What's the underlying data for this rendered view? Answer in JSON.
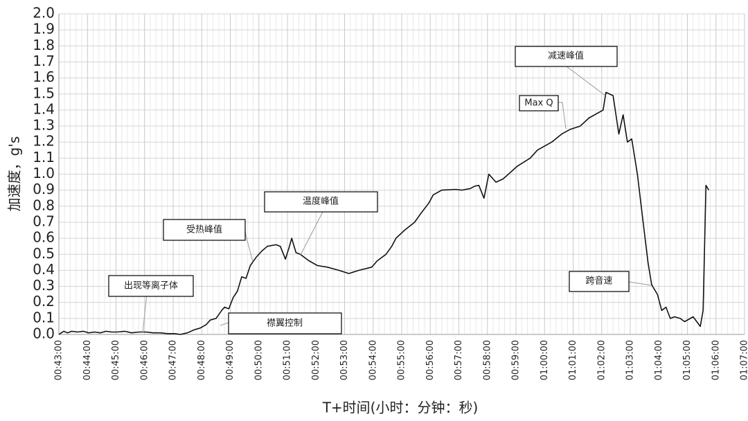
{
  "chart_data": {
    "type": "line",
    "x_label": "T+时间(小时：分钟：秒)",
    "y_label": "加速度，g's",
    "annotations": [
      "出现等离子体",
      "襟翼控制",
      "受热峰值",
      "温度峰值",
      "Max Q",
      "减速峰值",
      "跨音速"
    ],
    "grid": true,
    "xlim": [
      43,
      67
    ],
    "ylim": [
      0,
      2
    ],
    "yticks": [
      {
        "value": 0,
        "label": "0.0"
      },
      0.1,
      0.2,
      0.3,
      0.4,
      0.5,
      0.6,
      0.7,
      0.8,
      0.9,
      {
        "value": 1,
        "label": "1.0"
      },
      1.1,
      1.2,
      1.3,
      1.4,
      1.5,
      1.6,
      1.7,
      1.8,
      1.9,
      {
        "value": 2,
        "label": "2.0"
      }
    ],
    "xticks": [
      {
        "value": 43,
        "label": "00:43:00"
      },
      {
        "value": 44,
        "label": "00:44:00"
      },
      {
        "value": 45,
        "label": "00:45:00"
      },
      {
        "value": 46,
        "label": "00:46:00"
      },
      {
        "value": 47,
        "label": "00:47:00"
      },
      {
        "value": 48,
        "label": "00:48:00"
      },
      {
        "value": 49,
        "label": "00:49:00"
      },
      {
        "value": 50,
        "label": "00:50:00"
      },
      {
        "value": 51,
        "label": "00:51:00"
      },
      {
        "value": 52,
        "label": "00:52:00"
      },
      {
        "value": 53,
        "label": "00:53:00"
      },
      {
        "value": 54,
        "label": "00:54:00"
      },
      {
        "value": 55,
        "label": "00:55:00"
      },
      {
        "value": 56,
        "label": "00:56:00"
      },
      {
        "value": 57,
        "label": "00:57:00"
      },
      {
        "value": 58,
        "label": "00:58:00"
      },
      {
        "value": 59,
        "label": "00:59:00"
      },
      {
        "value": 60,
        "label": "01:00:00"
      },
      {
        "value": 61,
        "label": "01:01:00"
      },
      {
        "value": 62,
        "label": "01:02:00"
      },
      {
        "value": 63,
        "label": "01:03:00"
      },
      {
        "value": 64,
        "label": "01:04:00"
      },
      {
        "value": 65,
        "label": "01:05:00"
      },
      {
        "value": 66,
        "label": "01:06:00"
      },
      {
        "value": 67,
        "label": "01:07:00"
      }
    ],
    "series": [
      {
        "color": "#111111",
        "x": [
          43.0,
          43.17,
          43.3,
          43.45,
          43.65,
          43.85,
          44.05,
          44.25,
          44.45,
          44.65,
          44.85,
          45.05,
          45.3,
          45.55,
          45.8,
          46.05,
          46.3,
          46.55,
          46.8,
          47.05,
          47.25,
          47.5,
          47.75,
          47.95,
          48.15,
          48.3,
          48.5,
          48.7,
          48.8,
          48.95,
          49.1,
          49.25,
          49.4,
          49.55,
          49.7,
          49.9,
          50.1,
          50.3,
          50.6,
          50.75,
          50.93,
          51.07,
          51.15,
          51.3,
          51.45,
          51.75,
          52.05,
          52.4,
          52.8,
          53.15,
          53.5,
          53.95,
          54.15,
          54.45,
          54.65,
          54.8,
          55.1,
          55.45,
          55.65,
          55.95,
          56.1,
          56.4,
          56.9,
          57.1,
          57.4,
          57.55,
          57.7,
          57.88,
          58.05,
          58.3,
          58.55,
          59.05,
          59.5,
          59.75,
          60.25,
          60.6,
          60.9,
          61.25,
          61.55,
          62.05,
          62.15,
          62.4,
          62.6,
          62.75,
          62.9,
          63.05,
          63.25,
          63.45,
          63.62,
          63.75,
          63.95,
          64.1,
          64.25,
          64.4,
          64.55,
          64.75,
          64.9,
          65.2,
          65.45,
          65.55,
          65.65,
          65.75
        ],
        "values": [
          0.0,
          0.02,
          0.01,
          0.02,
          0.015,
          0.02,
          0.01,
          0.015,
          0.01,
          0.02,
          0.015,
          0.015,
          0.02,
          0.01,
          0.015,
          0.015,
          0.01,
          0.01,
          0.005,
          0.005,
          0.0,
          0.01,
          0.03,
          0.04,
          0.06,
          0.09,
          0.1,
          0.15,
          0.17,
          0.16,
          0.23,
          0.27,
          0.36,
          0.35,
          0.43,
          0.48,
          0.52,
          0.55,
          0.56,
          0.55,
          0.47,
          0.55,
          0.6,
          0.51,
          0.5,
          0.46,
          0.43,
          0.42,
          0.4,
          0.38,
          0.4,
          0.42,
          0.46,
          0.5,
          0.55,
          0.6,
          0.65,
          0.7,
          0.75,
          0.82,
          0.87,
          0.9,
          0.905,
          0.9,
          0.91,
          0.925,
          0.93,
          0.85,
          1.0,
          0.95,
          0.97,
          1.05,
          1.1,
          1.15,
          1.2,
          1.25,
          1.28,
          1.3,
          1.35,
          1.4,
          1.51,
          1.49,
          1.25,
          1.37,
          1.2,
          1.22,
          1.0,
          0.7,
          0.45,
          0.31,
          0.25,
          0.15,
          0.17,
          0.1,
          0.11,
          0.1,
          0.08,
          0.11,
          0.05,
          0.15,
          0.93,
          0.9
        ]
      }
    ]
  }
}
